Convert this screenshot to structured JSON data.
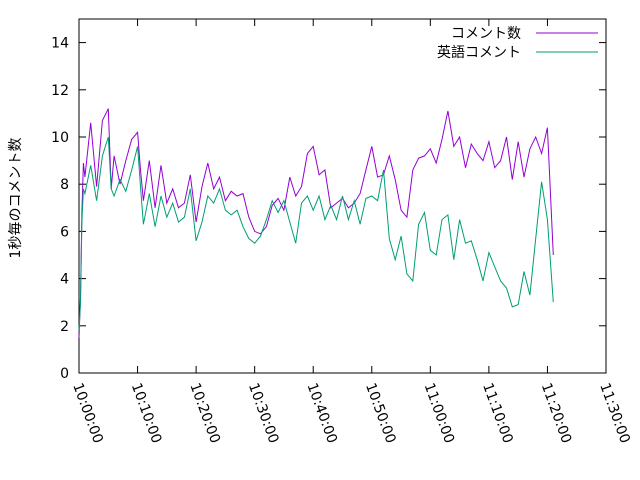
{
  "chart_data": {
    "type": "line",
    "title": "",
    "xlabel": "",
    "ylabel": "1秒毎のコメント数",
    "xlim": [
      "10:00:00",
      "11:30:00"
    ],
    "ylim": [
      0,
      15
    ],
    "x_ticks": [
      "10:00:00",
      "10:10:00",
      "10:20:00",
      "10:30:00",
      "10:40:00",
      "10:50:00",
      "11:00:00",
      "11:10:00",
      "11:20:00",
      "11:30:00"
    ],
    "y_ticks": [
      0,
      2,
      4,
      6,
      8,
      10,
      12,
      14
    ],
    "grid": false,
    "legend_position": "top-right",
    "series": [
      {
        "name": "コメント数",
        "color": "#9400d3",
        "x": [
          "10:00:00",
          "10:00:15",
          "10:00:30",
          "10:00:45",
          "10:01:00",
          "10:02:00",
          "10:03:00",
          "10:04:00",
          "10:05:00",
          "10:05:30",
          "10:06:00",
          "10:07:00",
          "10:08:00",
          "10:09:00",
          "10:10:00",
          "10:10:30",
          "10:11:00",
          "10:12:00",
          "10:13:00",
          "10:14:00",
          "10:15:00",
          "10:16:00",
          "10:17:00",
          "10:18:00",
          "10:19:00",
          "10:20:00",
          "10:21:00",
          "10:22:00",
          "10:23:00",
          "10:24:00",
          "10:25:00",
          "10:26:00",
          "10:27:00",
          "10:28:00",
          "10:29:00",
          "10:30:00",
          "10:31:00",
          "10:32:00",
          "10:33:00",
          "10:34:00",
          "10:35:00",
          "10:36:00",
          "10:37:00",
          "10:38:00",
          "10:39:00",
          "10:40:00",
          "10:41:00",
          "10:42:00",
          "10:43:00",
          "10:44:00",
          "10:45:00",
          "10:46:00",
          "10:47:00",
          "10:48:00",
          "10:49:00",
          "10:50:00",
          "10:51:00",
          "10:52:00",
          "10:53:00",
          "10:54:00",
          "10:55:00",
          "10:56:00",
          "10:57:00",
          "10:58:00",
          "10:59:00",
          "11:00:00",
          "11:01:00",
          "11:02:00",
          "11:03:00",
          "11:04:00",
          "11:05:00",
          "11:06:00",
          "11:07:00",
          "11:08:00",
          "11:09:00",
          "11:10:00",
          "11:11:00",
          "11:12:00",
          "11:13:00",
          "11:14:00",
          "11:15:00",
          "11:16:00",
          "11:17:00",
          "11:18:00",
          "11:19:00",
          "11:20:00",
          "11:21:00"
        ],
        "y": [
          1.5,
          3.2,
          6.8,
          8.9,
          8.3,
          10.6,
          7.9,
          10.7,
          11.2,
          7.8,
          9.2,
          8.0,
          9.0,
          9.9,
          10.2,
          8.6,
          7.3,
          9.0,
          7.0,
          8.8,
          7.2,
          7.8,
          7.0,
          7.2,
          8.4,
          6.4,
          7.9,
          8.9,
          7.8,
          8.3,
          7.3,
          7.7,
          7.5,
          7.6,
          6.6,
          6.0,
          5.9,
          6.2,
          7.1,
          7.4,
          6.9,
          8.3,
          7.5,
          7.9,
          9.3,
          9.6,
          8.4,
          8.6,
          7.0,
          7.2,
          7.4,
          7.0,
          7.2,
          7.6,
          8.6,
          9.6,
          8.3,
          8.4,
          9.2,
          8.2,
          6.9,
          6.6,
          8.6,
          9.1,
          9.2,
          9.5,
          8.9,
          9.9,
          11.1,
          9.6,
          10.0,
          8.7,
          9.7,
          9.3,
          9.0,
          9.8,
          8.7,
          9.0,
          10.0,
          8.2,
          9.8,
          8.3,
          9.5,
          10.0,
          9.3,
          10.4,
          5.0
        ]
      },
      {
        "name": "英語コメント",
        "color": "#009e73",
        "x": [
          "10:00:00",
          "10:00:15",
          "10:00:30",
          "10:00:45",
          "10:01:00",
          "10:02:00",
          "10:03:00",
          "10:04:00",
          "10:05:00",
          "10:05:30",
          "10:06:00",
          "10:07:00",
          "10:08:00",
          "10:09:00",
          "10:10:00",
          "10:10:30",
          "10:11:00",
          "10:12:00",
          "10:13:00",
          "10:14:00",
          "10:15:00",
          "10:16:00",
          "10:17:00",
          "10:18:00",
          "10:19:00",
          "10:20:00",
          "10:21:00",
          "10:22:00",
          "10:23:00",
          "10:24:00",
          "10:25:00",
          "10:26:00",
          "10:27:00",
          "10:28:00",
          "10:29:00",
          "10:30:00",
          "10:31:00",
          "10:32:00",
          "10:33:00",
          "10:34:00",
          "10:35:00",
          "10:36:00",
          "10:37:00",
          "10:38:00",
          "10:39:00",
          "10:40:00",
          "10:41:00",
          "10:42:00",
          "10:43:00",
          "10:44:00",
          "10:45:00",
          "10:46:00",
          "10:47:00",
          "10:48:00",
          "10:49:00",
          "10:50:00",
          "10:51:00",
          "10:52:00",
          "10:53:00",
          "10:54:00",
          "10:55:00",
          "10:56:00",
          "10:57:00",
          "10:58:00",
          "10:59:00",
          "11:00:00",
          "11:01:00",
          "11:02:00",
          "11:03:00",
          "11:04:00",
          "11:05:00",
          "11:06:00",
          "11:07:00",
          "11:08:00",
          "11:09:00",
          "11:10:00",
          "11:11:00",
          "11:12:00",
          "11:13:00",
          "11:14:00",
          "11:15:00",
          "11:16:00",
          "11:17:00",
          "11:18:00",
          "11:19:00",
          "11:20:00",
          "11:21:00"
        ],
        "y": [
          1.8,
          3.0,
          6.4,
          7.8,
          7.6,
          8.8,
          7.3,
          9.2,
          10.0,
          7.8,
          7.5,
          8.2,
          7.7,
          8.6,
          9.6,
          7.9,
          6.3,
          7.6,
          6.2,
          7.5,
          6.6,
          7.2,
          6.4,
          6.6,
          7.8,
          5.6,
          6.4,
          7.5,
          7.2,
          7.8,
          6.9,
          6.7,
          6.9,
          6.2,
          5.7,
          5.5,
          5.8,
          6.5,
          7.3,
          6.8,
          7.3,
          6.4,
          5.5,
          7.2,
          7.5,
          6.9,
          7.5,
          6.5,
          7.1,
          6.5,
          7.5,
          6.5,
          7.3,
          6.3,
          7.4,
          7.5,
          7.3,
          8.6,
          5.7,
          4.8,
          5.8,
          4.2,
          3.9,
          6.3,
          6.8,
          5.2,
          5.0,
          6.5,
          6.7,
          4.8,
          6.5,
          5.5,
          5.6,
          4.8,
          3.9,
          5.1,
          4.5,
          3.9,
          3.6,
          2.8,
          2.9,
          4.3,
          3.3,
          5.7,
          8.1,
          6.5,
          3.0
        ]
      }
    ]
  }
}
